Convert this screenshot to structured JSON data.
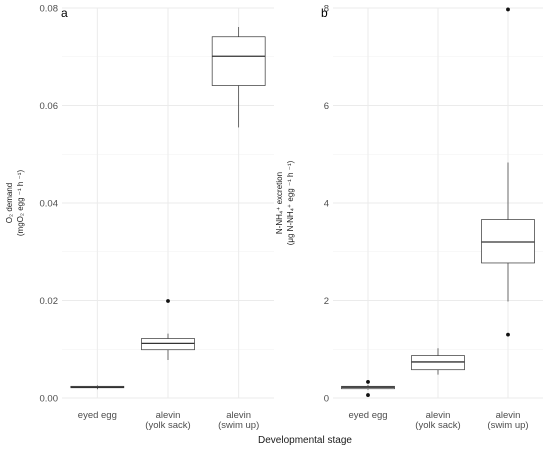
{
  "figure": {
    "xlabel": "Developmental stage"
  },
  "chart_data": [
    {
      "type": "box",
      "panel_label": "a",
      "categories": [
        {
          "line1": "eyed egg",
          "line2": ""
        },
        {
          "line1": "alevin",
          "line2": "(yolk sack)"
        },
        {
          "line1": "alevin",
          "line2": "(swim up)"
        }
      ],
      "ylabel_line1": "O₂ demand",
      "ylabel_line2": "(mgO₂ egg ⁻¹ h ⁻¹)",
      "ylim": [
        0,
        0.08
      ],
      "yticks": [
        0,
        0.02,
        0.04,
        0.06,
        0.08
      ],
      "ytick_labels": [
        "0.00",
        "0.02",
        "0.04",
        "0.06",
        "0.08"
      ],
      "grid": true,
      "boxes": [
        {
          "min": 0.0018,
          "q1": 0.0021,
          "median": 0.0022,
          "q3": 0.0024,
          "max": 0.0026,
          "outliers": []
        },
        {
          "min": 0.0078,
          "q1": 0.0099,
          "median": 0.0112,
          "q3": 0.0122,
          "max": 0.0132,
          "outliers": [
            0.0199
          ]
        },
        {
          "min": 0.0555,
          "q1": 0.0641,
          "median": 0.0701,
          "q3": 0.0741,
          "max": 0.0761,
          "outliers": []
        }
      ]
    },
    {
      "type": "box",
      "panel_label": "b",
      "categories": [
        {
          "line1": "eyed egg",
          "line2": ""
        },
        {
          "line1": "alevin",
          "line2": "(yolk sack)"
        },
        {
          "line1": "alevin",
          "line2": "(swim up)"
        }
      ],
      "ylabel_line1": "N-NH₄⁺ excretion",
      "ylabel_line2": "(μg N-NH₄⁺ egg ⁻¹ h ⁻¹)",
      "ylim": [
        0,
        8
      ],
      "yticks": [
        0,
        2,
        4,
        6,
        8
      ],
      "ytick_labels": [
        "0",
        "2",
        "4",
        "6",
        "8"
      ],
      "grid": true,
      "boxes": [
        {
          "min": 0.17,
          "q1": 0.19,
          "median": 0.22,
          "q3": 0.24,
          "max": 0.27,
          "outliers": [
            0.33,
            0.06
          ]
        },
        {
          "min": 0.48,
          "q1": 0.58,
          "median": 0.74,
          "q3": 0.87,
          "max": 1.02,
          "outliers": []
        },
        {
          "min": 1.98,
          "q1": 2.77,
          "median": 3.2,
          "q3": 3.66,
          "max": 4.83,
          "outliers": [
            7.97,
            1.3
          ]
        }
      ]
    }
  ]
}
